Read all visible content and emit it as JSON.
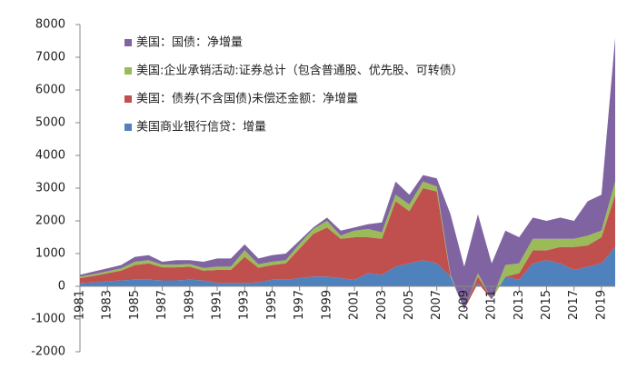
{
  "chart_data": {
    "type": "stacked_area",
    "x": [
      1981,
      1982,
      1983,
      1984,
      1985,
      1986,
      1987,
      1988,
      1989,
      1990,
      1991,
      1992,
      1993,
      1994,
      1995,
      1996,
      1997,
      1998,
      1999,
      2000,
      2001,
      2002,
      2003,
      2004,
      2005,
      2006,
      2007,
      2008,
      2009,
      2010,
      2011,
      2012,
      2013,
      2014,
      2015,
      2016,
      2017,
      2018,
      2019,
      2020
    ],
    "xlim": [
      1981,
      2020
    ],
    "xticks": [
      1981,
      1983,
      1985,
      1987,
      1989,
      1991,
      1993,
      1995,
      1997,
      1999,
      2001,
      2003,
      2005,
      2007,
      2009,
      2011,
      2013,
      2015,
      2017,
      2019
    ],
    "ylim": [
      -2000,
      8000
    ],
    "yticks": [
      -2000,
      -1000,
      0,
      1000,
      2000,
      3000,
      4000,
      5000,
      6000,
      7000,
      8000
    ],
    "series": [
      {
        "name": "美国商业银行信贷：增量",
        "color": "#4f81bd",
        "values": [
          100,
          120,
          150,
          180,
          200,
          200,
          180,
          180,
          200,
          180,
          100,
          100,
          100,
          120,
          200,
          200,
          250,
          300,
          300,
          250,
          200,
          400,
          350,
          600,
          700,
          800,
          700,
          300,
          -700,
          100,
          -400,
          300,
          200,
          700,
          800,
          700,
          500,
          600,
          700,
          1200
        ]
      },
      {
        "name": "美国：债券(不含国债)未偿还金额：净增量",
        "color": "#c0504d",
        "values": [
          150,
          200,
          250,
          300,
          450,
          500,
          400,
          400,
          400,
          300,
          400,
          400,
          800,
          450,
          450,
          500,
          900,
          1300,
          1500,
          1200,
          1300,
          1100,
          1100,
          2000,
          1600,
          2200,
          2200,
          0,
          0,
          200,
          0,
          0,
          200,
          400,
          300,
          500,
          700,
          650,
          800,
          1600
        ]
      },
      {
        "name": "美国:企业承销活动:证券总计（包含普通股、优先股、可转债）",
        "color": "#9bbb59",
        "values": [
          50,
          50,
          60,
          70,
          100,
          100,
          80,
          80,
          80,
          80,
          100,
          100,
          200,
          100,
          100,
          100,
          150,
          150,
          200,
          100,
          200,
          250,
          200,
          200,
          200,
          200,
          150,
          50,
          0,
          100,
          0,
          350,
          300,
          350,
          350,
          250,
          250,
          300,
          200,
          400
        ]
      },
      {
        "name": "美国：国债：净增量",
        "color": "#8064a2",
        "values": [
          50,
          80,
          90,
          100,
          150,
          150,
          90,
          140,
          120,
          190,
          250,
          250,
          180,
          180,
          200,
          200,
          100,
          50,
          100,
          150,
          100,
          150,
          300,
          400,
          300,
          200,
          250,
          1850,
          1300,
          1800,
          1100,
          1050,
          800,
          650,
          550,
          650,
          550,
          1050,
          1100,
          4400
        ]
      }
    ]
  }
}
